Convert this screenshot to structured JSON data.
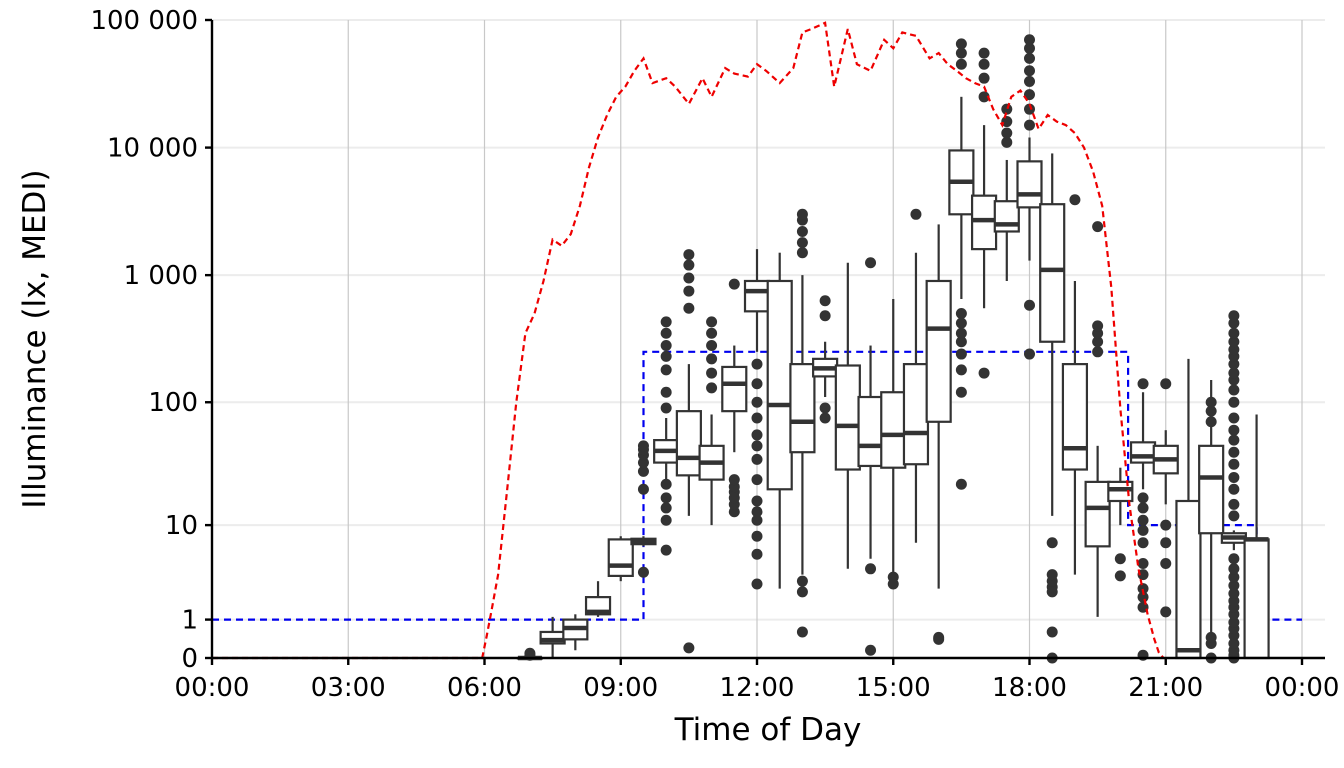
{
  "chart_data": {
    "type": "box",
    "xlabel": "Time of Day",
    "ylabel": "Illuminance (lx, MEDI)",
    "x_unit": "hours",
    "x_range": [
      0,
      24
    ],
    "x_ticks": [
      {
        "value": 0,
        "label": "00:00"
      },
      {
        "value": 3,
        "label": "03:00"
      },
      {
        "value": 6,
        "label": "06:00"
      },
      {
        "value": 9,
        "label": "09:00"
      },
      {
        "value": 12,
        "label": "12:00"
      },
      {
        "value": 15,
        "label": "15:00"
      },
      {
        "value": 18,
        "label": "18:00"
      },
      {
        "value": 21,
        "label": "21:00"
      },
      {
        "value": 24,
        "label": "00:00"
      }
    ],
    "y_scale": "symlog",
    "y_range": [
      0,
      100000
    ],
    "y_ticks": [
      {
        "value": 0,
        "label": "0"
      },
      {
        "value": 1,
        "label": "1"
      },
      {
        "value": 10,
        "label": "10"
      },
      {
        "value": 100,
        "label": "100"
      },
      {
        "value": 1000,
        "label": "1 000"
      },
      {
        "value": 10000,
        "label": "10 000"
      },
      {
        "value": 100000,
        "label": "100 000"
      }
    ],
    "grid": true,
    "legend": "none",
    "colors": {
      "boxes": "#333333",
      "reference_line": "#0000ee",
      "daylight_line": "#ee0000"
    },
    "boxes": [
      {
        "x": 7.0,
        "q1": 0,
        "median": 0,
        "q3": 0,
        "whisker_low": 0,
        "whisker_high": 0,
        "outliers": [
          0.05,
          0.09
        ]
      },
      {
        "x": 7.5,
        "q1": 0.3,
        "median": 0.38,
        "q3": 0.6,
        "whisker_low": 0,
        "whisker_high": 1.1,
        "outliers": []
      },
      {
        "x": 8.0,
        "q1": 0.4,
        "median": 0.72,
        "q3": 1.0,
        "whisker_low": 0.15,
        "whisker_high": 1.2,
        "outliers": []
      },
      {
        "x": 8.5,
        "q1": 1.2,
        "median": 1.3,
        "q3": 2.0,
        "whisker_low": 1.1,
        "whisker_high": 3.0,
        "outliers": []
      },
      {
        "x": 9.0,
        "q1": 3.4,
        "median": 4.3,
        "q3": 7.5,
        "whisker_low": 3.0,
        "whisker_high": 8.0,
        "outliers": []
      },
      {
        "x": 9.5,
        "q1": 6.8,
        "median": 7.2,
        "q3": 7.6,
        "whisker_low": 6.5,
        "whisker_high": 8.0,
        "outliers": [
          3.7,
          20,
          28,
          33,
          38,
          42,
          45
        ]
      },
      {
        "x": 10.0,
        "q1": 33,
        "median": 41,
        "q3": 50,
        "whisker_low": 20,
        "whisker_high": 75,
        "outliers": [
          6,
          11,
          14,
          17,
          22,
          90,
          120,
          180,
          230,
          280,
          350,
          430
        ]
      },
      {
        "x": 10.5,
        "q1": 26,
        "median": 36,
        "q3": 85,
        "whisker_low": 12,
        "whisker_high": 200,
        "outliers": [
          0.2,
          550,
          750,
          950,
          1200,
          1450
        ]
      },
      {
        "x": 11.0,
        "q1": 24,
        "median": 33,
        "q3": 45,
        "whisker_low": 10,
        "whisker_high": 80,
        "outliers": [
          130,
          170,
          220,
          280,
          350,
          430
        ]
      },
      {
        "x": 11.5,
        "q1": 85,
        "median": 140,
        "q3": 190,
        "whisker_low": 40,
        "whisker_high": 280,
        "outliers": [
          13,
          15,
          17,
          19,
          21,
          24,
          850
        ]
      },
      {
        "x": 12.0,
        "q1": 520,
        "median": 750,
        "q3": 900,
        "whisker_low": 250,
        "whisker_high": 1600,
        "outliers": [
          2.8,
          5.5,
          8,
          11,
          13,
          16,
          24,
          35,
          45,
          55,
          75,
          100,
          140,
          200
        ]
      },
      {
        "x": 12.5,
        "q1": 20,
        "median": 95,
        "q3": 900,
        "whisker_low": 2.5,
        "whisker_high": 1500,
        "outliers": []
      },
      {
        "x": 13.0,
        "q1": 40,
        "median": 70,
        "q3": 200,
        "whisker_low": 3.5,
        "whisker_high": 1000,
        "outliers": [
          0.6,
          2.3,
          3.0,
          1500,
          1800,
          2200,
          2700,
          3000
        ]
      },
      {
        "x": 13.5,
        "q1": 160,
        "median": 185,
        "q3": 220,
        "whisker_low": 110,
        "whisker_high": 300,
        "outliers": [
          75,
          90,
          480,
          630
        ]
      },
      {
        "x": 14.0,
        "q1": 29,
        "median": 65,
        "q3": 195,
        "whisker_low": 4,
        "whisker_high": 1250,
        "outliers": []
      },
      {
        "x": 14.5,
        "q1": 31,
        "median": 45,
        "q3": 110,
        "whisker_low": 5,
        "whisker_high": 280,
        "outliers": [
          0.15,
          4.0,
          1250
        ]
      },
      {
        "x": 15.0,
        "q1": 30,
        "median": 55,
        "q3": 120,
        "whisker_low": 3.5,
        "whisker_high": 650,
        "outliers": [
          2.8,
          3.3
        ]
      },
      {
        "x": 15.5,
        "q1": 32,
        "median": 57,
        "q3": 200,
        "whisker_low": 7,
        "whisker_high": 1500,
        "outliers": [
          3000
        ]
      },
      {
        "x": 16.0,
        "q1": 70,
        "median": 380,
        "q3": 900,
        "whisker_low": 2.5,
        "whisker_high": 2500,
        "outliers": [
          0.4,
          0.45
        ]
      },
      {
        "x": 16.5,
        "q1": 3000,
        "median": 5400,
        "q3": 9500,
        "whisker_low": 650,
        "whisker_high": 25000,
        "outliers": [
          22,
          120,
          180,
          240,
          300,
          350,
          420,
          500,
          45000,
          55000,
          65000
        ]
      },
      {
        "x": 17.0,
        "q1": 1600,
        "median": 2700,
        "q3": 4200,
        "whisker_low": 550,
        "whisker_high": 15000,
        "outliers": [
          170,
          25000,
          35000,
          45000,
          55000
        ]
      },
      {
        "x": 17.5,
        "q1": 2200,
        "median": 2500,
        "q3": 3800,
        "whisker_low": 900,
        "whisker_high": 8000,
        "outliers": [
          11000,
          13000,
          16000,
          20000
        ]
      },
      {
        "x": 18.0,
        "q1": 3400,
        "median": 4300,
        "q3": 7800,
        "whisker_low": 1300,
        "whisker_high": 12000,
        "outliers": [
          240,
          580,
          15000,
          20000,
          26000,
          33000,
          40000,
          50000,
          60000,
          70000
        ]
      },
      {
        "x": 18.5,
        "q1": 300,
        "median": 1100,
        "q3": 3600,
        "whisker_low": 12,
        "whisker_high": 9000,
        "outliers": [
          0,
          0.6,
          2.3,
          2.6,
          3.0,
          3.5,
          7
        ]
      },
      {
        "x": 19.0,
        "q1": 29,
        "median": 43,
        "q3": 200,
        "whisker_low": 3.5,
        "whisker_high": 900,
        "outliers": [
          3900
        ]
      },
      {
        "x": 19.5,
        "q1": 6.5,
        "median": 14,
        "q3": 23,
        "whisker_low": 1.1,
        "whisker_high": 45,
        "outliers": [
          250,
          300,
          350,
          400,
          2400
        ]
      },
      {
        "x": 20.0,
        "q1": 16,
        "median": 20,
        "q3": 23,
        "whisker_low": 10,
        "whisker_high": 30,
        "outliers": [
          3.4,
          5
        ]
      },
      {
        "x": 20.5,
        "q1": 33,
        "median": 37,
        "q3": 48,
        "whisker_low": 20,
        "whisker_high": 120,
        "outliers": [
          0.05,
          1.5,
          2.0,
          2.5,
          3.5,
          4.5,
          7,
          9,
          11,
          14,
          17,
          140
        ]
      },
      {
        "x": 21.0,
        "q1": 27,
        "median": 35,
        "q3": 45,
        "whisker_low": 15,
        "whisker_high": 60,
        "outliers": [
          1.3,
          4.5,
          7,
          10,
          140
        ]
      },
      {
        "x": 21.5,
        "q1": 0,
        "median": 0.15,
        "q3": 16,
        "whisker_low": 0,
        "whisker_high": 220,
        "outliers": []
      },
      {
        "x": 22.0,
        "q1": 8.5,
        "median": 25,
        "q3": 45,
        "whisker_low": 0.6,
        "whisker_high": 150,
        "outliers": [
          0,
          0.3,
          0.45,
          70,
          85,
          100
        ]
      },
      {
        "x": 22.5,
        "q1": 7,
        "median": 7.8,
        "q3": 8.5,
        "whisker_low": 6,
        "whisker_high": 9,
        "outliers": [
          0,
          0.05,
          0.15,
          0.3,
          0.5,
          0.7,
          0.9,
          1.2,
          1.5,
          1.8,
          2.2,
          2.7,
          3.3,
          4,
          5,
          12,
          15,
          20,
          25,
          32,
          40,
          50,
          60,
          75,
          100,
          125,
          150,
          170,
          200,
          230,
          260,
          300,
          350,
          420,
          480
        ]
      },
      {
        "x": 23.0,
        "q1": 0,
        "median": 7.5,
        "q3": 7.5,
        "whisker_low": 0,
        "whisker_high": 80,
        "outliers": []
      }
    ],
    "reference_line": {
      "style": "dashed step",
      "x": [
        0,
        6,
        9.5,
        9.5,
        20.17,
        20.17,
        23,
        23,
        24
      ],
      "y": [
        1,
        1,
        1,
        250,
        250,
        10,
        10,
        1,
        1
      ]
    },
    "daylight_line": {
      "style": "dashed",
      "x": [
        0,
        5.95,
        6.05,
        6.15,
        6.3,
        6.5,
        6.7,
        6.9,
        7.1,
        7.3,
        7.5,
        7.7,
        7.9,
        8.1,
        8.3,
        8.5,
        8.7,
        8.9,
        9.1,
        9.3,
        9.5,
        9.7,
        10.0,
        10.2,
        10.5,
        10.8,
        11.0,
        11.3,
        11.5,
        11.8,
        12.0,
        12.2,
        12.5,
        12.8,
        13.0,
        13.2,
        13.5,
        13.7,
        14.0,
        14.2,
        14.5,
        14.8,
        15.0,
        15.2,
        15.5,
        15.8,
        16.0,
        16.2,
        16.4,
        16.6,
        16.8,
        17.0,
        17.2,
        17.4,
        17.6,
        17.8,
        18.0,
        18.2,
        18.4,
        18.6,
        18.8,
        19.0,
        19.2,
        19.4,
        19.6,
        19.8,
        20.0,
        20.2,
        20.4,
        20.6,
        20.75,
        20.85,
        20.95
      ],
      "y": [
        0,
        0,
        0.5,
        1.3,
        3.5,
        20,
        100,
        350,
        500,
        900,
        1900,
        1700,
        2100,
        3500,
        7000,
        12000,
        18000,
        25000,
        30000,
        40000,
        50000,
        32000,
        35000,
        30000,
        22000,
        35000,
        25000,
        42000,
        38000,
        36000,
        45000,
        40000,
        32000,
        42000,
        80000,
        85000,
        95000,
        30000,
        85000,
        45000,
        40000,
        70000,
        60000,
        80000,
        75000,
        50000,
        55000,
        45000,
        40000,
        35000,
        32000,
        30000,
        20000,
        15000,
        25000,
        28000,
        22000,
        14000,
        18000,
        16000,
        15000,
        13000,
        10000,
        6500,
        3500,
        800,
        90,
        15,
        4,
        1.2,
        0.4,
        0.1,
        0
      ]
    }
  }
}
